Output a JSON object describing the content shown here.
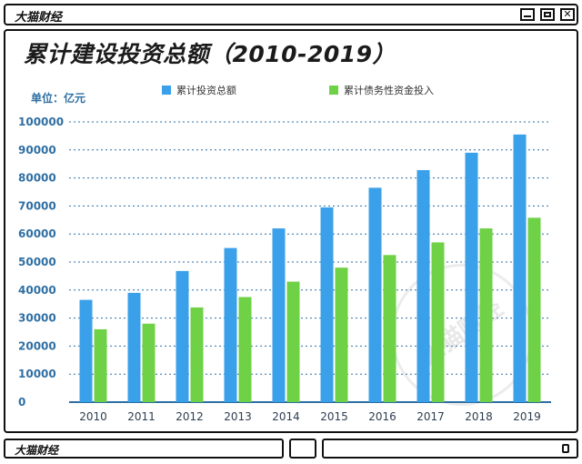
{
  "window": {
    "title": "大猫财经",
    "footer_title": "大猫财经"
  },
  "watermark": {
    "text": "大猫财经"
  },
  "colors": {
    "series_blue": "#3aa0ea",
    "series_green": "#6fd146",
    "axis_text": "#2f6fa3",
    "grid": "#2f6fa3"
  },
  "chart_data": {
    "type": "bar",
    "title": "累计建设投资总额（2010-2019）",
    "unit_label": "单位：亿元",
    "xlabel": "",
    "ylabel": "",
    "categories": [
      "2010",
      "2011",
      "2012",
      "2013",
      "2014",
      "2015",
      "2016",
      "2017",
      "2018",
      "2019"
    ],
    "series": [
      {
        "name": "累计投资总额",
        "color": "#3aa0ea",
        "values": [
          36500,
          39000,
          46800,
          55000,
          62000,
          69500,
          76500,
          82800,
          89000,
          95500
        ]
      },
      {
        "name": "累计债务性资金投入",
        "color": "#6fd146",
        "values": [
          26000,
          28000,
          33800,
          37500,
          43000,
          48000,
          52500,
          57000,
          62000,
          65800
        ]
      }
    ],
    "yticks": [
      0,
      10000,
      20000,
      30000,
      40000,
      50000,
      60000,
      70000,
      80000,
      90000,
      100000
    ],
    "ylim": [
      0,
      100000
    ],
    "grid": true,
    "legend_position": "top"
  }
}
